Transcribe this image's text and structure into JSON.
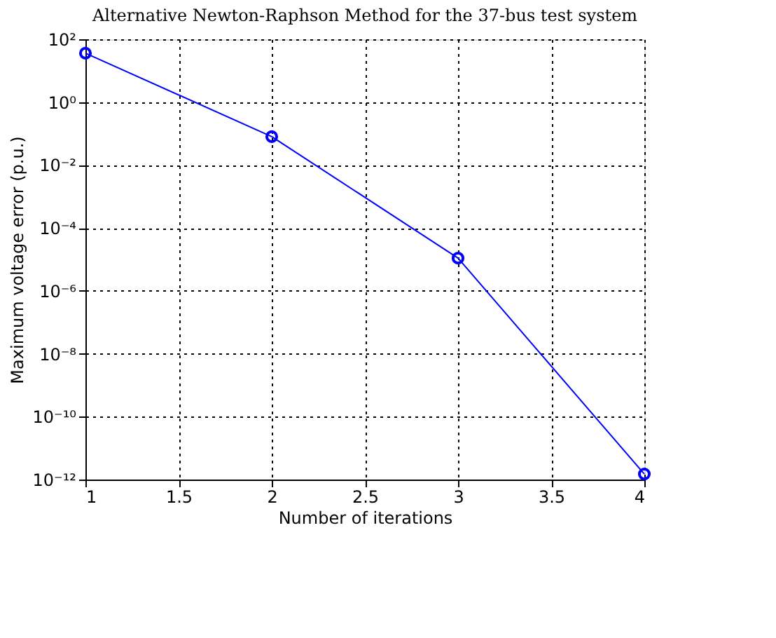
{
  "chart_data": {
    "type": "line",
    "title": "Alternative Newton-Raphson Method for the 37-bus test system",
    "xlabel": "Number of iterations",
    "ylabel": "Maximum voltage error (p.u.)",
    "x": [
      1,
      2,
      3,
      4
    ],
    "series": [
      {
        "color": "#0000ff",
        "values": [
          36,
          0.08,
          1.1e-05,
          1.5e-12
        ]
      }
    ],
    "xlim": [
      1,
      4
    ],
    "xticks": [
      1,
      1.5,
      2,
      2.5,
      3,
      3.5,
      4
    ],
    "ylim": [
      1e-12,
      100
    ],
    "yticks": [
      {
        "value": 1e-12,
        "label": "10⁻¹²"
      },
      {
        "value": 1e-10,
        "label": "10⁻¹⁰"
      },
      {
        "value": 1e-08,
        "label": "10⁻⁸"
      },
      {
        "value": 1e-06,
        "label": "10⁻⁶"
      },
      {
        "value": 0.0001,
        "label": "10⁻⁴"
      },
      {
        "value": 0.01,
        "label": "10⁻²"
      },
      {
        "value": 1,
        "label": "10⁰"
      },
      {
        "value": 100,
        "label": "10²"
      }
    ],
    "log": "y",
    "grid": true,
    "marker": "circle",
    "line_style": "solid"
  }
}
